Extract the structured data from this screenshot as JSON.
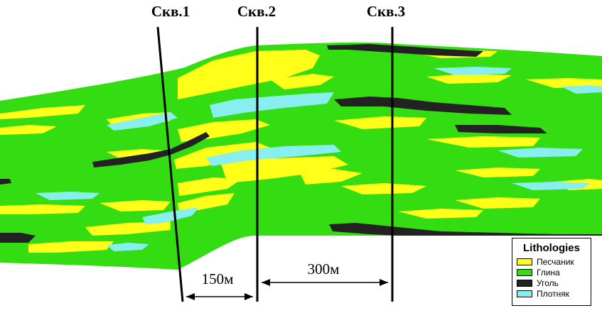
{
  "wells": [
    {
      "id": "well-1",
      "label": "Скв.1"
    },
    {
      "id": "well-2",
      "label": "Скв.2"
    },
    {
      "id": "well-3",
      "label": "Скв.3"
    }
  ],
  "distances": [
    {
      "id": "distance-1-2",
      "label": "150м"
    },
    {
      "id": "distance-2-3",
      "label": "300м"
    }
  ],
  "legend": {
    "title": "Lithologies",
    "items": [
      {
        "id": "sandstone",
        "label": "Песчаник",
        "color": "#ffff1a"
      },
      {
        "id": "clay",
        "label": "Глина",
        "color": "#33dd11"
      },
      {
        "id": "coal",
        "label": "Уголь",
        "color": "#222222"
      },
      {
        "id": "tight",
        "label": "Плотняк",
        "color": "#88eeee"
      }
    ]
  }
}
